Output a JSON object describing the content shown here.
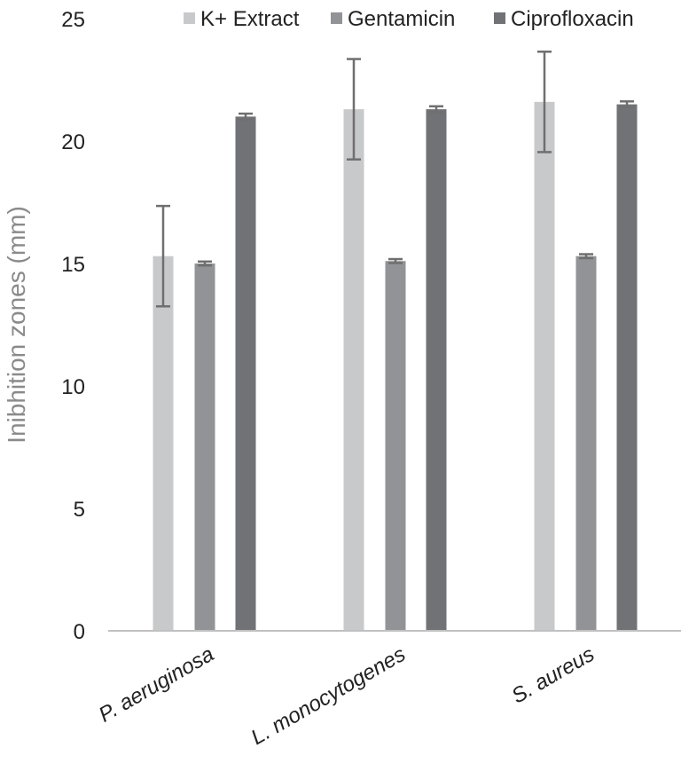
{
  "chart_data": {
    "type": "bar",
    "ylabel": "Inibhition zones (mm)",
    "ylim": [
      0,
      25
    ],
    "yticks": [
      0,
      5,
      10,
      15,
      20,
      25
    ],
    "categories": [
      "P. aeruginosa",
      "L. monocytogenes",
      "S. aureus"
    ],
    "series": [
      {
        "name": "K+ Extract",
        "color": "#c8c9cb",
        "values": [
          15.3,
          21.3,
          21.6
        ],
        "errors": [
          2.05,
          2.05,
          2.05
        ]
      },
      {
        "name": "Gentamicin",
        "color": "#929396",
        "values": [
          15.0,
          15.1,
          15.3
        ],
        "errors": [
          0.08,
          0.08,
          0.08
        ]
      },
      {
        "name": "Ciprofloxacin",
        "color": "#717275",
        "values": [
          21.0,
          21.3,
          21.5
        ],
        "errors": [
          0.12,
          0.12,
          0.12
        ]
      }
    ],
    "legend_position": "top",
    "grid": false
  }
}
